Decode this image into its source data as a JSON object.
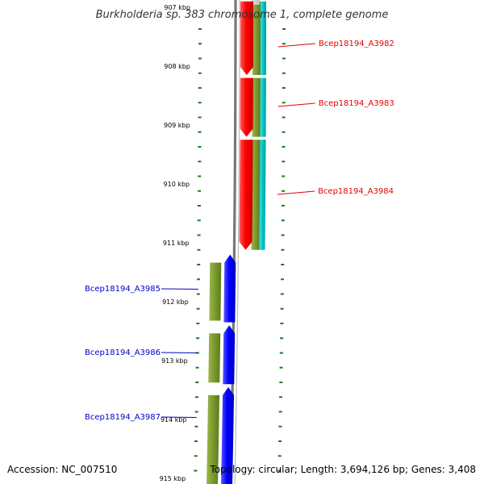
{
  "title": "Burkholderia sp. 383 chromosome 1, complete genome",
  "footer": {
    "accession": "Accession: NC_007510",
    "summary": "Topology: circular; Length: 3,694,126 bp; Genes: 3,408"
  },
  "colors": {
    "forward_gene": "#ff0000",
    "reverse_gene": "#0000ff",
    "olive_track": "#7a9a2e",
    "cyan_track": "#00cccc",
    "backbone": "#777777",
    "tick": "#1a7a1a",
    "forward_label": "#e60000",
    "reverse_label": "#0000cc"
  },
  "ruler": {
    "unit": "kbp",
    "ticks": [
      {
        "kbp": 907,
        "label": "907 kbp"
      },
      {
        "kbp": 908,
        "label": "908 kbp"
      },
      {
        "kbp": 909,
        "label": "909 kbp"
      },
      {
        "kbp": 910,
        "label": "910 kbp"
      },
      {
        "kbp": 911,
        "label": "911 kbp"
      },
      {
        "kbp": 912,
        "label": "912 kbp"
      },
      {
        "kbp": 913,
        "label": "913 kbp"
      },
      {
        "kbp": 914,
        "label": "914 kbp"
      },
      {
        "kbp": 915,
        "label": "915 kbp"
      }
    ]
  },
  "genes": [
    {
      "name": "Bcep18194_A3982",
      "strand": "forward",
      "start_kbp": 906.9,
      "end_kbp": 908.15
    },
    {
      "name": "Bcep18194_A3983",
      "strand": "forward",
      "start_kbp": 908.2,
      "end_kbp": 909.2
    },
    {
      "name": "Bcep18194_A3984",
      "strand": "forward",
      "start_kbp": 909.25,
      "end_kbp": 911.12
    },
    {
      "name": "Bcep18194_A3985",
      "strand": "reverse",
      "start_kbp": 911.2,
      "end_kbp": 912.35
    },
    {
      "name": "Bcep18194_A3986",
      "strand": "reverse",
      "start_kbp": 912.4,
      "end_kbp": 913.4
    },
    {
      "name": "Bcep18194_A3987",
      "strand": "reverse",
      "start_kbp": 913.45,
      "end_kbp": 915.15
    }
  ]
}
